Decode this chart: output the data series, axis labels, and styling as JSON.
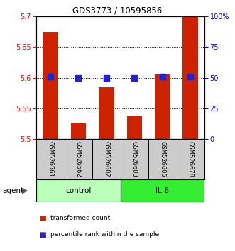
{
  "title": "GDS3773 / 10595856",
  "samples": [
    "GSM526561",
    "GSM526562",
    "GSM526602",
    "GSM526603",
    "GSM526605",
    "GSM526678"
  ],
  "bar_values": [
    5.675,
    5.527,
    5.585,
    5.538,
    5.605,
    5.7
  ],
  "percentile_values": [
    51,
    50,
    50,
    50,
    51,
    51
  ],
  "ylim": [
    5.5,
    5.7
  ],
  "yticks": [
    5.5,
    5.55,
    5.6,
    5.65,
    5.7
  ],
  "ytick_labels": [
    "5.5",
    "5.55",
    "5.6",
    "5.65",
    "5.7"
  ],
  "right_yticks": [
    0,
    25,
    50,
    75,
    100
  ],
  "right_ytick_labels": [
    "0",
    "25",
    "50",
    "75",
    "100%"
  ],
  "bar_color": "#cc2200",
  "dot_color": "#2222cc",
  "control_color": "#bbffbb",
  "il6_color": "#33ee33",
  "sample_bg_color": "#cccccc",
  "grid_dotted_yticks": [
    5.55,
    5.6,
    5.65
  ],
  "bar_width": 0.55,
  "dot_size": 28,
  "percentile_ylim": [
    0,
    100
  ],
  "legend_red_label": "transformed count",
  "legend_blue_label": "percentile rank within the sample",
  "agent_label": "agent"
}
